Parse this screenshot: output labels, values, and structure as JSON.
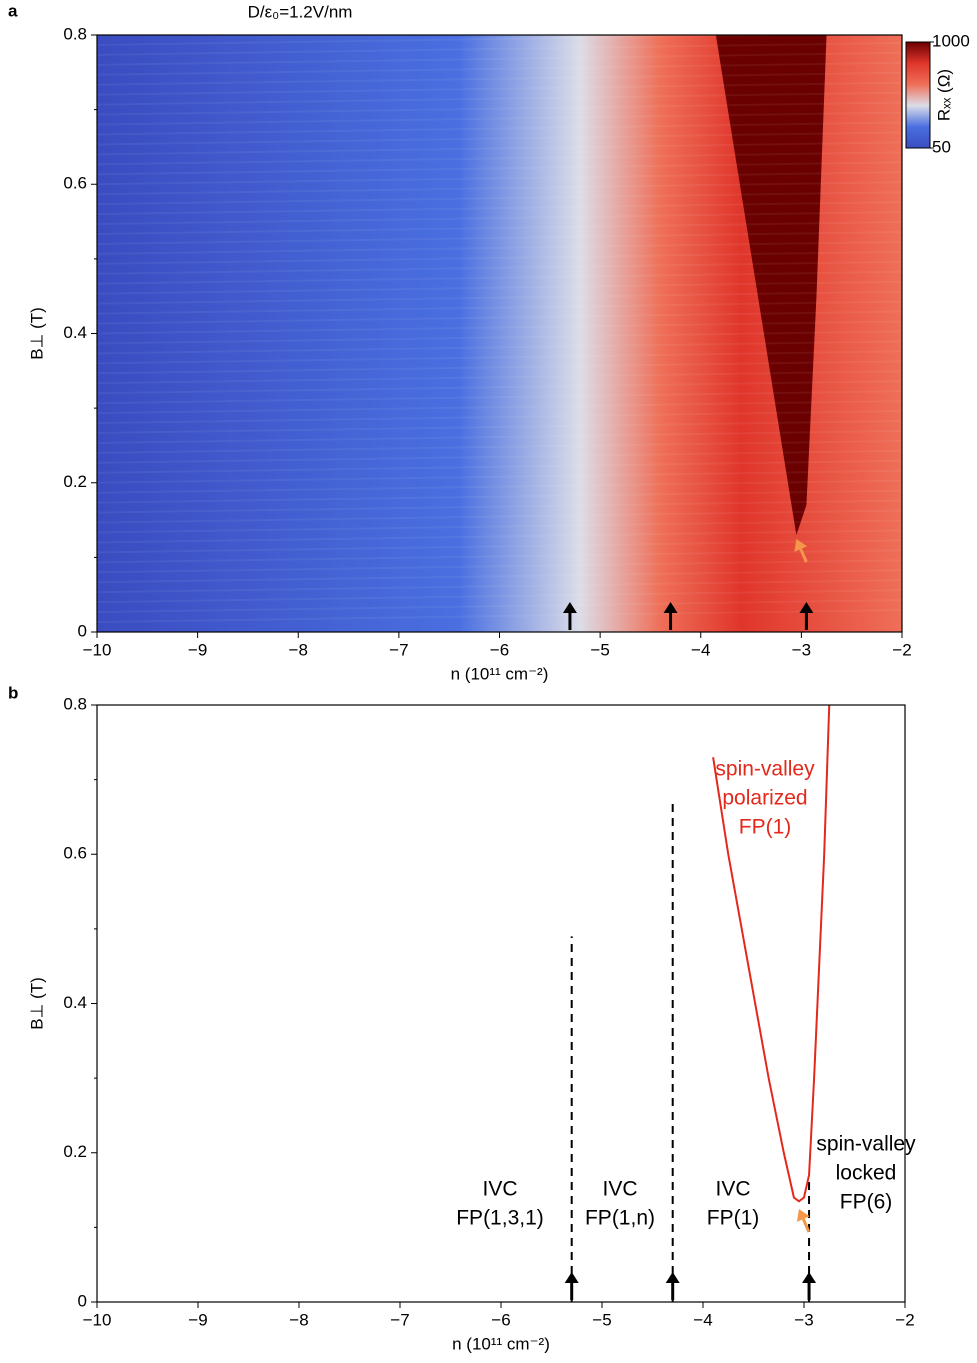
{
  "chart_data": [
    {
      "type": "heatmap",
      "panel": "a",
      "title": "D/ε₀=1.2V/nm",
      "xlabel": "n (10¹¹ cm⁻²)",
      "ylabel": "B⊥ (T)",
      "xlim": [
        -10,
        -2
      ],
      "ylim": [
        0,
        0.8
      ],
      "xticks": [
        {
          "value": -10,
          "label": "−10"
        },
        {
          "value": -9,
          "label": "−9"
        },
        {
          "value": -8,
          "label": "−8"
        },
        {
          "value": -7,
          "label": "−7"
        },
        {
          "value": -6,
          "label": "−6"
        },
        {
          "value": -5,
          "label": "−5"
        },
        {
          "value": -4,
          "label": "−4"
        },
        {
          "value": -3,
          "label": "−3"
        },
        {
          "value": -2,
          "label": "−2"
        }
      ],
      "yticks": [
        0,
        0.2,
        0.4,
        0.6,
        0.8
      ],
      "yminor": [
        0.1,
        0.3,
        0.5,
        0.7
      ],
      "colorbar": {
        "label": "Rₓₓ (Ω)",
        "lim": [
          50,
          1000
        ],
        "ticks": [
          50,
          1000
        ],
        "colors": [
          "#3a4cc0",
          "#4a6fe0",
          "#dcdde8",
          "#ef6f58",
          "#e0352b",
          "#6b0000"
        ]
      },
      "arrows": {
        "x": [
          -5.3,
          -4.3,
          -2.95
        ],
        "color": "#000000"
      },
      "highlight_arrow": {
        "x": -3.05,
        "y": 0.13,
        "color": "#f4974a"
      }
    },
    {
      "type": "line",
      "panel": "b",
      "xlabel": "n (10¹¹ cm⁻²)",
      "ylabel": "B⊥ (T)",
      "xlim": [
        -10,
        -2
      ],
      "ylim": [
        0,
        0.8
      ],
      "xticks": [
        {
          "value": -10,
          "label": "−10"
        },
        {
          "value": -9,
          "label": "−9"
        },
        {
          "value": -8,
          "label": "−8"
        },
        {
          "value": -7,
          "label": "−7"
        },
        {
          "value": -6,
          "label": "−6"
        },
        {
          "value": -5,
          "label": "−5"
        },
        {
          "value": -4,
          "label": "−4"
        },
        {
          "value": -3,
          "label": "−3"
        },
        {
          "value": -2,
          "label": "−2"
        }
      ],
      "yticks": [
        0,
        0.2,
        0.4,
        0.6,
        0.8
      ],
      "yminor": [
        0.1,
        0.3,
        0.5,
        0.7
      ],
      "series": [
        {
          "color": "#e3281c",
          "x": [
            -3.9,
            -3.75,
            -3.55,
            -3.35,
            -3.2,
            -3.1,
            -3.05,
            -3.0,
            -2.95,
            -2.9,
            -2.85,
            -2.8,
            -2.75
          ],
          "values": [
            0.73,
            0.6,
            0.45,
            0.3,
            0.2,
            0.14,
            0.135,
            0.14,
            0.17,
            0.3,
            0.45,
            0.6,
            0.8
          ]
        }
      ],
      "dashed": {
        "x": [
          -5.3,
          -4.3,
          -2.95
        ],
        "top": [
          0.49,
          0.67,
          0.17
        ],
        "color": "#000000"
      },
      "annotations": [
        {
          "lines": [
            "IVC",
            "FP(1,3,1)"
          ],
          "color": "#000000"
        },
        {
          "lines": [
            "IVC",
            "FP(1,n)"
          ],
          "color": "#000000"
        },
        {
          "lines": [
            "IVC",
            "FP(1)"
          ],
          "color": "#000000"
        },
        {
          "lines": [
            "spin-valley",
            "polarized",
            "FP(1)"
          ],
          "color": "#e3281c"
        },
        {
          "lines": [
            "spin-valley",
            "locked",
            "FP(6)"
          ],
          "color": "#000000"
        }
      ],
      "arrows": {
        "x": [
          -5.3,
          -4.3,
          -2.95
        ],
        "color": "#000000"
      },
      "highlight_arrow": {
        "x": -3.05,
        "y": 0.13,
        "color": "#f4974a"
      }
    }
  ]
}
